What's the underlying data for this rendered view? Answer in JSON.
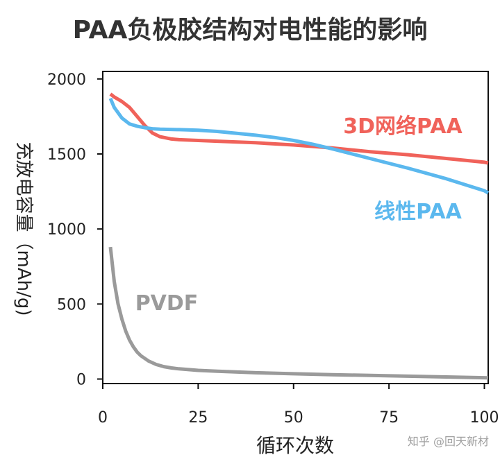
{
  "title": "PAA负极胶结构对电性能的影响",
  "watermark": "知乎 @回天新材",
  "chart_data": {
    "type": "line",
    "title": "PAA负极胶结构对电性能的影响",
    "xlabel": "循环次数",
    "ylabel": "充放电容量（mAh/g)",
    "xlim": [
      0,
      101
    ],
    "ylim": [
      -30,
      2050
    ],
    "xticks": [
      0,
      25,
      50,
      75,
      100
    ],
    "yticks": [
      0,
      500,
      1000,
      1500,
      2000
    ],
    "grid": false,
    "legend": "inline labels",
    "series": [
      {
        "name": "3D网络PAA",
        "color": "#F0625A",
        "x": [
          2,
          3,
          5,
          7,
          9,
          11,
          13,
          15,
          18,
          20,
          25,
          30,
          40,
          50,
          60,
          70,
          80,
          90,
          100,
          101
        ],
        "y": [
          1900,
          1880,
          1850,
          1810,
          1750,
          1690,
          1640,
          1615,
          1600,
          1595,
          1590,
          1585,
          1575,
          1560,
          1540,
          1515,
          1495,
          1470,
          1445,
          1440
        ]
      },
      {
        "name": "线性PAA",
        "color": "#5BB8EE",
        "x": [
          2,
          3,
          5,
          7,
          9,
          11,
          13,
          15,
          20,
          25,
          30,
          40,
          45,
          50,
          55,
          60,
          70,
          80,
          90,
          100,
          101
        ],
        "y": [
          1870,
          1810,
          1740,
          1700,
          1685,
          1675,
          1668,
          1665,
          1662,
          1658,
          1650,
          1625,
          1610,
          1590,
          1565,
          1535,
          1470,
          1405,
          1335,
          1255,
          1240
        ]
      },
      {
        "name": "PVDF",
        "color": "#9A9A9A",
        "x": [
          2,
          3,
          4,
          5,
          6,
          7,
          8,
          9,
          10,
          12,
          14,
          16,
          18,
          20,
          25,
          30,
          40,
          50,
          60,
          70,
          80,
          90,
          100,
          101
        ],
        "y": [
          880,
          650,
          500,
          400,
          320,
          260,
          215,
          180,
          155,
          120,
          97,
          83,
          74,
          68,
          58,
          52,
          42,
          35,
          29,
          24,
          19,
          14,
          9,
          8
        ]
      }
    ]
  }
}
